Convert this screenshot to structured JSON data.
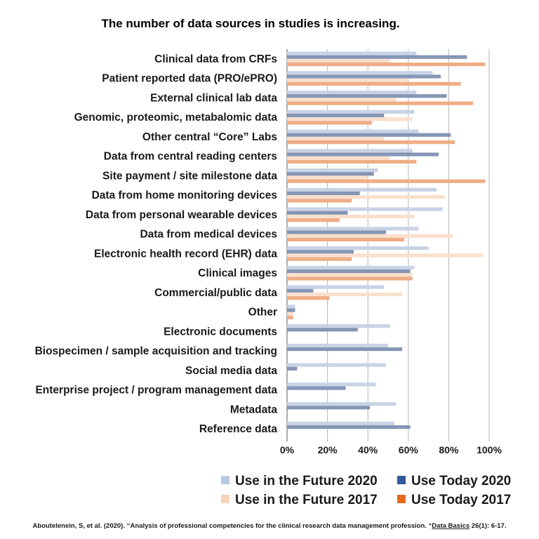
{
  "chart_data": {
    "type": "bar",
    "orientation": "horizontal",
    "title": "The number of data sources in studies is increasing.",
    "categories": [
      "Clinical data from CRFs",
      "Patient reported data (PRO/ePRO)",
      "External clinical lab data",
      "Genomic, proteomic, metabalomic data",
      "Other central “Core” Labs",
      "Data from central reading centers",
      "Site payment / site milestone data",
      "Data from home monitoring devices",
      "Data from personal wearable devices",
      "Data from medical devices",
      "Electronic health record (EHR) data",
      "Clinical images",
      "Commercial/public data",
      "Other",
      "Electronic documents",
      "Biospecimen / sample acquisition and tracking",
      "Social media data",
      "Enterprise project / program management data",
      "Metadata",
      "Reference data"
    ],
    "series": [
      {
        "name": "Use in the Future 2020",
        "color": "#c9d3e6",
        "values": [
          64,
          72,
          64,
          63,
          65,
          62,
          45,
          74,
          77,
          65,
          70,
          63,
          48,
          4,
          51,
          50,
          49,
          44,
          54,
          53
        ]
      },
      {
        "name": "Use Today 2020",
        "color": "#8596b5",
        "values": [
          89,
          76,
          79,
          48,
          81,
          75,
          43,
          36,
          30,
          49,
          33,
          61,
          13,
          4,
          35,
          57,
          5,
          29,
          41,
          61
        ]
      },
      {
        "name": "Use in the Future 2017",
        "color": "#f9e0cd",
        "values": [
          51,
          60,
          54,
          62,
          48,
          51,
          40,
          78,
          63,
          82,
          97,
          62,
          57,
          3,
          null,
          null,
          null,
          null,
          null,
          null
        ]
      },
      {
        "name": "Use Today 2017",
        "color": "#efad85",
        "values": [
          98,
          86,
          92,
          42,
          83,
          64,
          98,
          32,
          26,
          58,
          32,
          62,
          21,
          3,
          null,
          null,
          null,
          null,
          null,
          null
        ]
      }
    ],
    "legend_colors": {
      "Use in the Future 2020": "#b8c9e3",
      "Use Today 2020": "#34599a",
      "Use in the Future 2017": "#f7d3b7",
      "Use Today 2017": "#e26b1c"
    },
    "xlim": [
      0,
      100
    ],
    "xticks": [
      "0%",
      "20%",
      "40%",
      "60%",
      "80%",
      "100%"
    ],
    "grid": true,
    "legend": "bottom-right"
  },
  "citation": {
    "prefix": "Aboutelenein, S, et al. (2020). ‘‘Analysis of professional competencies for the clinical research data management profession. “",
    "journal": "Data Basics",
    "volume": " 26",
    "rest": "(1): 6-17."
  }
}
